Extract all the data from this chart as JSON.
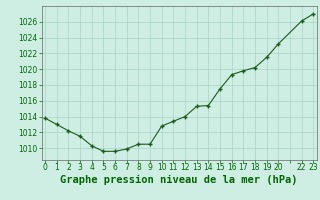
{
  "x": [
    0,
    1,
    2,
    3,
    4,
    5,
    6,
    7,
    8,
    9,
    10,
    11,
    12,
    13,
    14,
    15,
    16,
    17,
    18,
    19,
    20,
    22,
    23
  ],
  "y": [
    1013.8,
    1013.0,
    1012.2,
    1011.5,
    1010.3,
    1009.6,
    1009.6,
    1009.9,
    1010.5,
    1010.5,
    1012.8,
    1013.4,
    1014.0,
    1015.3,
    1015.4,
    1017.5,
    1019.3,
    1019.8,
    1020.2,
    1021.5,
    1023.2,
    1026.1,
    1027.0
  ],
  "line_color": "#1a5c1a",
  "marker": "+",
  "marker_size": 3,
  "marker_edge_width": 1.0,
  "line_width": 0.8,
  "bg_color": "#ceeee4",
  "grid_color": "#aad4c8",
  "title": "Graphe pression niveau de la mer (hPa)",
  "ylim": [
    1008.5,
    1028.0
  ],
  "yticks": [
    1010,
    1012,
    1014,
    1016,
    1018,
    1020,
    1022,
    1024,
    1026
  ],
  "xlim": [
    -0.3,
    23.3
  ],
  "title_fontsize": 7.5,
  "tick_fontsize": 5.5,
  "title_color": "#006600",
  "tick_color": "#006600",
  "spine_color": "#666666"
}
